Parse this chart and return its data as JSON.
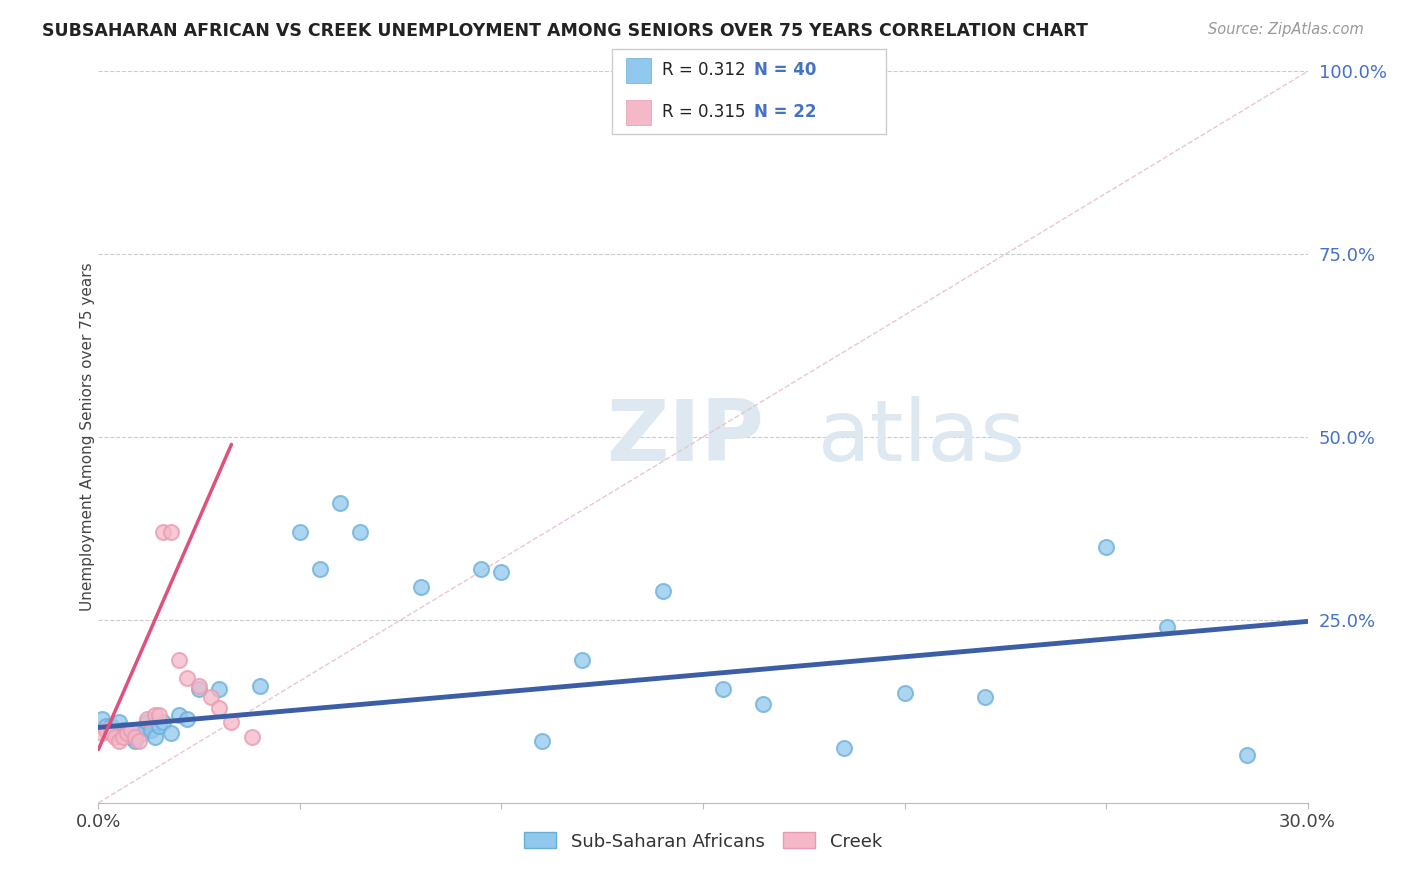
{
  "title": "SUBSAHARAN AFRICAN VS CREEK UNEMPLOYMENT AMONG SENIORS OVER 75 YEARS CORRELATION CHART",
  "source": "Source: ZipAtlas.com",
  "ylabel": "Unemployment Among Seniors over 75 years",
  "xlim": [
    0.0,
    0.3
  ],
  "ylim": [
    0.0,
    1.0
  ],
  "xticks": [
    0.0,
    0.05,
    0.1,
    0.15,
    0.2,
    0.25,
    0.3
  ],
  "xtick_labels": [
    "0.0%",
    "",
    "",
    "",
    "",
    "",
    "30.0%"
  ],
  "yticks": [
    0.0,
    0.25,
    0.5,
    0.75,
    1.0
  ],
  "ytick_labels": [
    "",
    "25.0%",
    "50.0%",
    "75.0%",
    "100.0%"
  ],
  "watermark_zip": "ZIP",
  "watermark_atlas": "atlas",
  "blue_color": "#91C8EE",
  "pink_color": "#F4B8C8",
  "blue_edge": "#6aaed6",
  "pink_edge": "#e89ab0",
  "line_blue": "#3B5EA6",
  "line_pink": "#E0507A",
  "diag_color": "#DDBBCC",
  "sub_saharan_x": [
    0.001,
    0.002,
    0.003,
    0.004,
    0.005,
    0.006,
    0.007,
    0.008,
    0.009,
    0.01,
    0.011,
    0.012,
    0.013,
    0.014,
    0.015,
    0.016,
    0.018,
    0.02,
    0.022,
    0.025,
    0.03,
    0.04,
    0.05,
    0.055,
    0.06,
    0.065,
    0.08,
    0.095,
    0.1,
    0.11,
    0.12,
    0.14,
    0.155,
    0.165,
    0.185,
    0.2,
    0.22,
    0.25,
    0.265,
    0.285
  ],
  "sub_saharan_y": [
    0.115,
    0.105,
    0.105,
    0.095,
    0.11,
    0.1,
    0.095,
    0.09,
    0.085,
    0.1,
    0.095,
    0.11,
    0.1,
    0.09,
    0.105,
    0.11,
    0.095,
    0.12,
    0.115,
    0.155,
    0.155,
    0.16,
    0.37,
    0.32,
    0.41,
    0.37,
    0.295,
    0.32,
    0.315,
    0.085,
    0.195,
    0.29,
    0.155,
    0.135,
    0.075,
    0.15,
    0.145,
    0.35,
    0.24,
    0.065
  ],
  "creek_x": [
    0.001,
    0.002,
    0.003,
    0.004,
    0.005,
    0.006,
    0.007,
    0.008,
    0.009,
    0.01,
    0.012,
    0.014,
    0.015,
    0.016,
    0.018,
    0.02,
    0.022,
    0.025,
    0.028,
    0.03,
    0.033,
    0.038
  ],
  "creek_y": [
    0.095,
    0.1,
    0.095,
    0.09,
    0.085,
    0.09,
    0.095,
    0.1,
    0.09,
    0.085,
    0.115,
    0.12,
    0.12,
    0.37,
    0.37,
    0.195,
    0.17,
    0.16,
    0.145,
    0.13,
    0.11,
    0.09
  ],
  "ss_line_x0": 0.0,
  "ss_line_y0": 0.103,
  "ss_line_x1": 0.3,
  "ss_line_y1": 0.248,
  "ck_line_x0": 0.0,
  "ck_line_y0": 0.073,
  "ck_line_x1": 0.033,
  "ck_line_y1": 0.49
}
